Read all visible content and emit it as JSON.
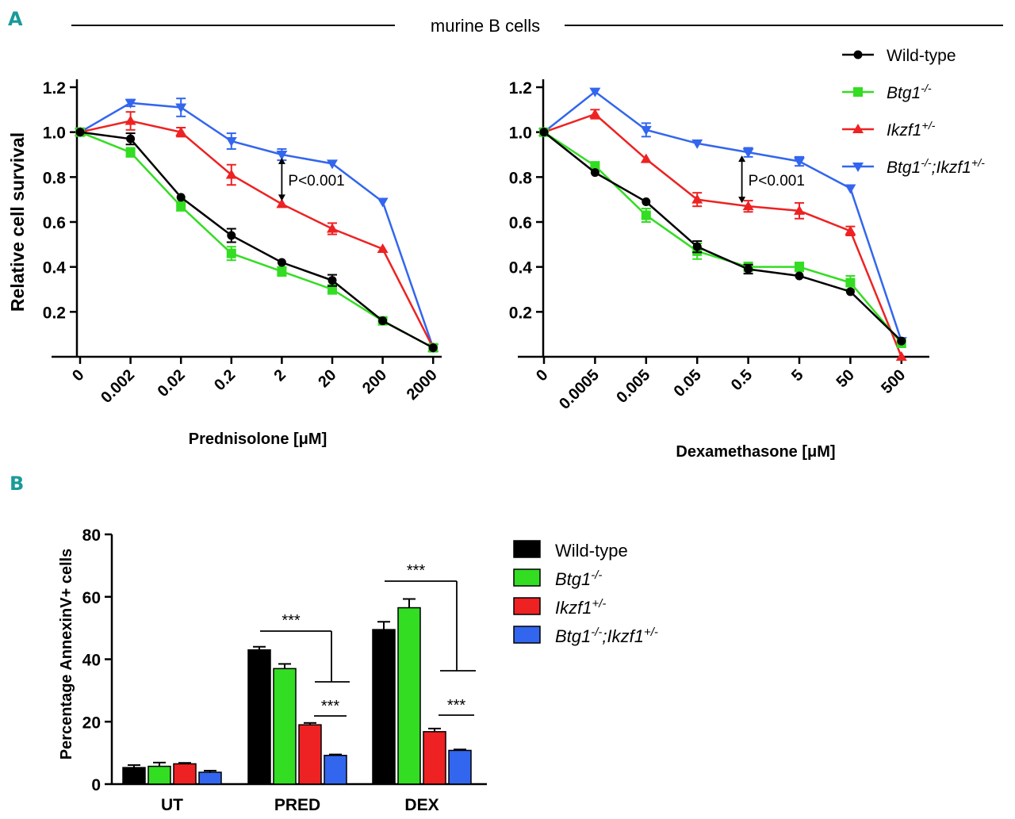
{
  "panel_a_label": "A",
  "panel_b_label": "B",
  "header_title": "murine B cells",
  "colors": {
    "wildtype": "#000000",
    "btg1": "#33dd22",
    "ikzf1": "#ee2222",
    "double": "#3366ee",
    "accent_letter": "#1a9a9a"
  },
  "legend_a": [
    {
      "key": "wildtype",
      "main": "Wild-type",
      "sup": "",
      "sup2": "",
      "italic": false,
      "marker": "circle"
    },
    {
      "key": "btg1",
      "main": "Btg1",
      "sup": "-/-",
      "sup2": "",
      "italic": true,
      "marker": "square"
    },
    {
      "key": "ikzf1",
      "main": "Ikzf1",
      "sup": "+/-",
      "sup2": "",
      "italic": true,
      "marker": "triangle-up"
    },
    {
      "key": "double",
      "main": "Btg1",
      "sup": "-/-",
      "mid": ";Ikzf1",
      "sup2": "+/-",
      "italic": true,
      "marker": "triangle-down"
    }
  ],
  "legend_b": [
    {
      "key": "wildtype",
      "main": "Wild-type",
      "sup": "",
      "italic": false
    },
    {
      "key": "btg1",
      "main": "Btg1",
      "sup": "-/-",
      "italic": true
    },
    {
      "key": "ikzf1",
      "main": "Ikzf1",
      "sup": "+/-",
      "italic": true
    },
    {
      "key": "double",
      "main": "Btg1",
      "sup": "-/-",
      "mid": ";Ikzf1",
      "sup2": "+/-",
      "italic": true
    }
  ],
  "chart_data": [
    {
      "id": "prednisolone",
      "type": "line",
      "title": "",
      "xlabel": "Prednisolone [μM]",
      "ylabel": "Relative cell survival",
      "categories": [
        "0",
        "0.002",
        "0.02",
        "0.2",
        "2",
        "20",
        "200",
        "2000"
      ],
      "ylim": [
        0,
        1.2
      ],
      "yticks": [
        "0.2",
        "0.4",
        "0.6",
        "0.8",
        "1.0",
        "1.2"
      ],
      "annotation": "P<0.001",
      "annotation_at": {
        "category_index": 4,
        "from": 0.68,
        "to": 0.9
      },
      "series": [
        {
          "key": "double",
          "name": "Btg1-/-;Ikzf1+/-",
          "values": [
            1.0,
            1.13,
            1.11,
            0.96,
            0.9,
            0.86,
            0.69,
            0.04
          ],
          "errors": [
            0,
            0.015,
            0.04,
            0.035,
            0.025,
            0,
            0,
            0.015
          ]
        },
        {
          "key": "ikzf1",
          "name": "Ikzf1+/-",
          "values": [
            1.0,
            1.05,
            1.0,
            0.81,
            0.68,
            0.57,
            0.48,
            0.04
          ],
          "errors": [
            0,
            0.04,
            0.02,
            0.045,
            0,
            0.025,
            0,
            0
          ]
        },
        {
          "key": "wildtype",
          "name": "Wild-type",
          "values": [
            1.0,
            0.97,
            0.71,
            0.54,
            0.42,
            0.34,
            0.16,
            0.04
          ],
          "errors": [
            0,
            0.025,
            0,
            0.03,
            0,
            0.025,
            0,
            0
          ]
        },
        {
          "key": "btg1",
          "name": "Btg1-/-",
          "values": [
            1.0,
            0.91,
            0.67,
            0.46,
            0.38,
            0.3,
            0.16,
            0.04
          ],
          "errors": [
            0,
            0.02,
            0.02,
            0.03,
            0.02,
            0.02,
            0,
            0
          ]
        }
      ]
    },
    {
      "id": "dexamethasone",
      "type": "line",
      "title": "",
      "xlabel": "Dexamethasone [μM]",
      "ylabel": "",
      "categories": [
        "0",
        "0.0005",
        "0.005",
        "0.05",
        "0.5",
        "5",
        "50",
        "500"
      ],
      "ylim": [
        0,
        1.2
      ],
      "yticks": [
        "0.2",
        "0.4",
        "0.6",
        "0.8",
        "1.0",
        "1.2"
      ],
      "annotation": "P<0.001",
      "annotation_at": {
        "category_index": 4,
        "from": 0.67,
        "to": 0.91
      },
      "series": [
        {
          "key": "double",
          "name": "Btg1-/-;Ikzf1+/-",
          "values": [
            1.0,
            1.18,
            1.01,
            0.95,
            0.91,
            0.87,
            0.75,
            0.07
          ],
          "errors": [
            0,
            0,
            0.03,
            0,
            0.02,
            0.02,
            0,
            0
          ]
        },
        {
          "key": "ikzf1",
          "name": "Ikzf1+/-",
          "values": [
            1.0,
            1.08,
            0.88,
            0.7,
            0.67,
            0.65,
            0.56,
            0.0
          ],
          "errors": [
            0,
            0.02,
            0,
            0.03,
            0.025,
            0.035,
            0.02,
            0
          ]
        },
        {
          "key": "wildtype",
          "name": "Wild-type",
          "values": [
            1.0,
            0.82,
            0.69,
            0.49,
            0.39,
            0.36,
            0.29,
            0.07
          ],
          "errors": [
            0,
            0,
            0,
            0.025,
            0.02,
            0,
            0,
            0
          ]
        },
        {
          "key": "btg1",
          "name": "Btg1-/-",
          "values": [
            1.0,
            0.85,
            0.63,
            0.47,
            0.4,
            0.4,
            0.33,
            0.06
          ],
          "errors": [
            0,
            0,
            0.03,
            0.035,
            0.02,
            0.02,
            0.03,
            0
          ]
        }
      ]
    },
    {
      "id": "annexin",
      "type": "bar",
      "title": "",
      "xlabel": "",
      "ylabel": "Percentage AnnexinV+ cells",
      "categories": [
        "UT",
        "PRED",
        "DEX"
      ],
      "ylim": [
        0,
        80
      ],
      "yticks": [
        "0",
        "20",
        "40",
        "60",
        "80"
      ],
      "series": [
        {
          "key": "wildtype",
          "name": "Wild-type",
          "values": [
            5.3,
            43,
            49.5
          ],
          "errors": [
            0.8,
            1.0,
            2.5
          ]
        },
        {
          "key": "btg1",
          "name": "Btg1-/-",
          "values": [
            5.7,
            37,
            56.5
          ],
          "errors": [
            1.2,
            1.5,
            2.8
          ]
        },
        {
          "key": "ikzf1",
          "name": "Ikzf1+/-",
          "values": [
            6.5,
            19,
            16.8
          ],
          "errors": [
            0.3,
            0.6,
            1.0
          ]
        },
        {
          "key": "double",
          "name": "Btg1-/-;Ikzf1+/-",
          "values": [
            3.8,
            9.2,
            10.8
          ],
          "errors": [
            0.5,
            0.3,
            0.3
          ]
        }
      ],
      "significance": [
        {
          "category": "PRED",
          "label": "***",
          "type": "wt-vs-mutants"
        },
        {
          "category": "PRED",
          "label": "***",
          "type": "ikzf1-vs-double"
        },
        {
          "category": "DEX",
          "label": "***",
          "type": "wt-vs-mutants"
        },
        {
          "category": "DEX",
          "label": "***",
          "type": "ikzf1-vs-double"
        }
      ]
    }
  ]
}
